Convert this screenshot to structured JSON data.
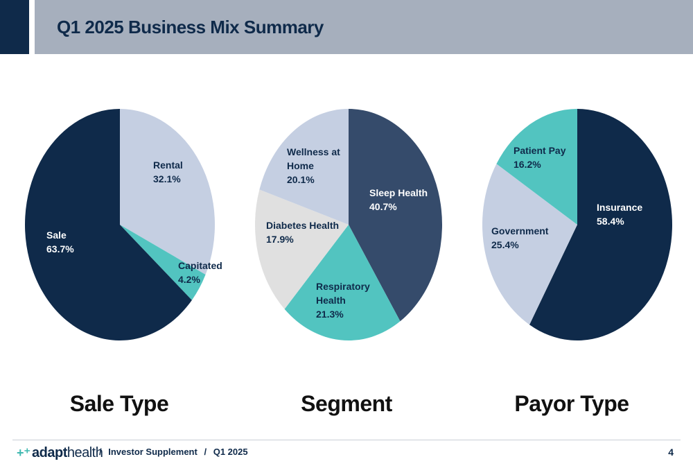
{
  "header": {
    "title": "Q1 2025 Business Mix Summary"
  },
  "colors": {
    "navy": "#0f2a4a",
    "slate": "#354b6b",
    "teal": "#52c4c0",
    "light_blue": "#c5cfe2",
    "light_gray": "#e0e0e0",
    "header_gray": "#a6afbd"
  },
  "chart_data": [
    {
      "type": "pie",
      "title": "Sale Type",
      "start": "12 o'clock, clockwise",
      "slices": [
        {
          "label": "Rental",
          "value": 32.1,
          "display": "32.1%",
          "color": "#c5cfe2",
          "text_color": "#0f2a4a"
        },
        {
          "label": "Capitated",
          "value": 4.2,
          "display": "4.2%",
          "color": "#52c4c0",
          "text_color": "#0f2a4a"
        },
        {
          "label": "Sale",
          "value": 63.7,
          "display": "63.7%",
          "color": "#0f2a4a",
          "text_color": "#ffffff"
        }
      ]
    },
    {
      "type": "pie",
      "title": "Segment",
      "start": "12 o'clock, clockwise",
      "slices": [
        {
          "label": "Sleep Health",
          "value": 40.7,
          "display": "40.7%",
          "color": "#354b6b",
          "text_color": "#ffffff"
        },
        {
          "label": "Respiratory Health",
          "value": 21.3,
          "display": "21.3%",
          "color": "#52c4c0",
          "text_color": "#0f2a4a"
        },
        {
          "label": "Diabetes Health",
          "value": 17.9,
          "display": "17.9%",
          "color": "#e0e0e0",
          "text_color": "#0f2a4a"
        },
        {
          "label": "Wellness at Home",
          "value": 20.1,
          "display": "20.1%",
          "color": "#c5cfe2",
          "text_color": "#0f2a4a"
        }
      ]
    },
    {
      "type": "pie",
      "title": "Payor Type",
      "start": "12 o'clock, clockwise",
      "slices": [
        {
          "label": "Insurance",
          "value": 58.4,
          "display": "58.4%",
          "color": "#0f2a4a",
          "text_color": "#ffffff"
        },
        {
          "label": "Government",
          "value": 25.4,
          "display": "25.4%",
          "color": "#c5cfe2",
          "text_color": "#0f2a4a"
        },
        {
          "label": "Patient Pay",
          "value": 16.2,
          "display": "16.2%",
          "color": "#52c4c0",
          "text_color": "#0f2a4a"
        }
      ]
    }
  ],
  "footer": {
    "logo_prefix": "adapt",
    "logo_suffix": "health",
    "breadcrumb": [
      "/",
      "Investor Supplement",
      "/",
      "Q1 2025"
    ],
    "page_number": "4"
  }
}
